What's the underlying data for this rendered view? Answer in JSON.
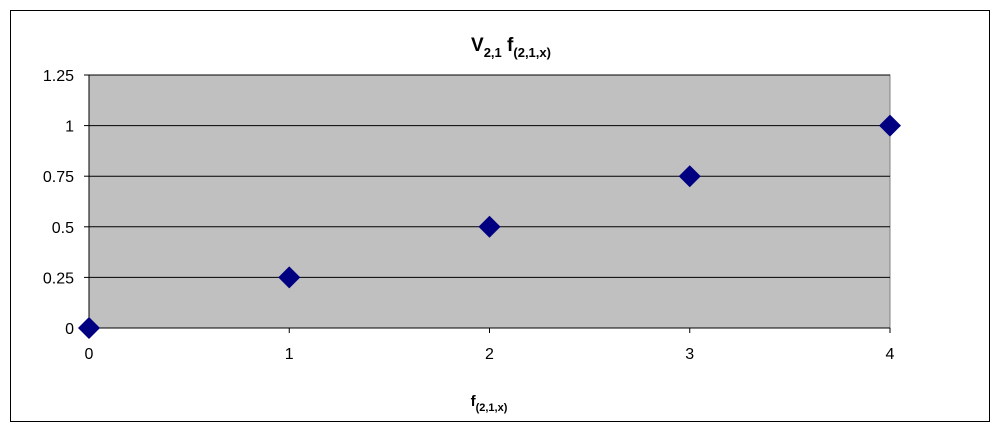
{
  "chart_data": {
    "type": "scatter",
    "title": {
      "main": "V",
      "main_sub": "2,1",
      "rest": " f",
      "rest_sub": "(2,1,x)"
    },
    "xlabel": {
      "main": "f",
      "sub": "(2,1,x)"
    },
    "ylabel": "",
    "x": [
      0,
      1,
      2,
      3,
      4
    ],
    "y": [
      0,
      0.25,
      0.5,
      0.75,
      1
    ],
    "xlim": [
      0,
      4
    ],
    "ylim": [
      0,
      1.25
    ],
    "x_ticks": [
      "0",
      "1",
      "2",
      "3",
      "4"
    ],
    "y_ticks": [
      "0",
      "0.25",
      "0.5",
      "0.75",
      "1",
      "1.25"
    ],
    "grid": "horizontal",
    "legend": "none",
    "marker": "diamond",
    "colors": {
      "plot_background": "#c0c0c0",
      "marker": "#000080",
      "gridline": "#000000"
    }
  }
}
